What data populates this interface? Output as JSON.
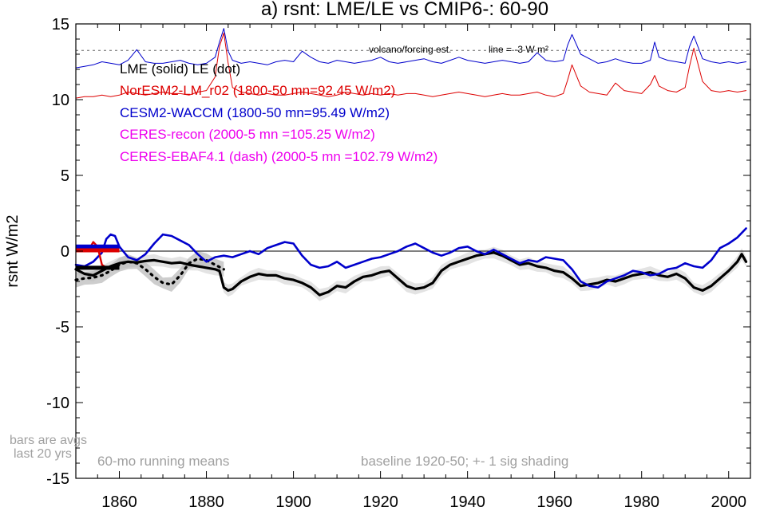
{
  "chart_data": {
    "type": "line",
    "title": "a) rsnt: LME/LE vs CMIP6-: 60-90",
    "ylabel": "rsnt W/m2",
    "xlabel": "",
    "xlim": [
      1850,
      2005
    ],
    "ylim": [
      -15,
      15
    ],
    "grid": false,
    "x_ticks": [
      1860,
      1880,
      1900,
      1920,
      1940,
      1960,
      1980,
      2000
    ],
    "y_ticks": [
      15,
      10,
      5,
      0,
      -5,
      -10,
      -15
    ],
    "zero_line": 0,
    "reference_line": {
      "value": 13.25,
      "label": "line = -3 W m²"
    },
    "legend": [
      {
        "text": "LME (solid)   LE (dot)",
        "color": "#000000"
      },
      {
        "text": "NorESM2-LM_r02 (1800-50 mn=92.45 W/m2)",
        "color": "#dd0000"
      },
      {
        "text": "CESM2-WACCM (1800-50 mn=95.49 W/m2)",
        "color": "#0000cc"
      },
      {
        "text": "CERES-recon (2000-5 mn =105.25 W/m2)",
        "color": "#ee00ee"
      },
      {
        "text": "CERES-EBAF4.1 (dash) (2000-5 mn =102.79 W/m2)",
        "color": "#ee00ee"
      }
    ],
    "annotations": {
      "volcano": "volcano/forcing est.",
      "bars_line1": "bars are avgs",
      "bars_line2": "last 20 yrs",
      "running": "60-mo running means",
      "baseline": "baseline 1920-50; +- 1 sig shading"
    },
    "colors": {
      "lme": "#000000",
      "noresm": "#dd0000",
      "cesm": "#0000cc",
      "shade": "#cccccc",
      "note": "#a0a0a0"
    },
    "series": [
      {
        "name": "LME (solid)",
        "color": "#000000",
        "x": [
          1850,
          1852,
          1854,
          1856,
          1858,
          1860,
          1862,
          1864,
          1866,
          1868,
          1870,
          1872,
          1874,
          1876,
          1878,
          1880,
          1882,
          1883,
          1884,
          1885,
          1886,
          1888,
          1890,
          1892,
          1894,
          1896,
          1898,
          1900,
          1902,
          1904,
          1906,
          1908,
          1910,
          1912,
          1914,
          1916,
          1918,
          1920,
          1922,
          1924,
          1926,
          1928,
          1930,
          1932,
          1934,
          1936,
          1938,
          1940,
          1942,
          1944,
          1946,
          1948,
          1950,
          1952,
          1954,
          1956,
          1958,
          1960,
          1962,
          1964,
          1966,
          1968,
          1970,
          1972,
          1974,
          1976,
          1978,
          1980,
          1982,
          1984,
          1986,
          1988,
          1990,
          1992,
          1994,
          1996,
          1998,
          2000,
          2002,
          2003,
          2004
        ],
        "values": [
          -1.2,
          -1.5,
          -1.6,
          -1.3,
          -1.0,
          -0.8,
          -0.7,
          -0.75,
          -0.65,
          -0.6,
          -0.7,
          -0.8,
          -0.75,
          -0.9,
          -1.0,
          -1.1,
          -1.2,
          -1.3,
          -2.4,
          -2.6,
          -2.5,
          -2.0,
          -1.7,
          -1.5,
          -1.6,
          -1.6,
          -1.8,
          -1.9,
          -2.1,
          -2.4,
          -2.9,
          -2.7,
          -2.3,
          -2.4,
          -2.0,
          -1.7,
          -1.6,
          -1.4,
          -1.3,
          -1.8,
          -2.3,
          -2.5,
          -2.4,
          -2.1,
          -1.3,
          -0.9,
          -0.7,
          -0.5,
          -0.3,
          -0.2,
          -0.1,
          -0.3,
          -0.6,
          -0.9,
          -0.8,
          -1.0,
          -1.1,
          -1.3,
          -1.4,
          -1.8,
          -2.3,
          -2.2,
          -2.1,
          -1.9,
          -2.0,
          -1.8,
          -1.6,
          -1.5,
          -1.4,
          -1.6,
          -1.7,
          -1.5,
          -1.8,
          -2.4,
          -2.6,
          -2.3,
          -1.8,
          -1.3,
          -0.7,
          -0.2,
          -0.7
        ]
      },
      {
        "name": "LE (dot)",
        "color": "#000000",
        "x": [
          1850,
          1852,
          1854,
          1856,
          1858,
          1860,
          1862,
          1864,
          1866,
          1868,
          1870,
          1872,
          1874,
          1876,
          1878,
          1880,
          1882,
          1884
        ],
        "values": [
          -1.9,
          -1.8,
          -1.75,
          -1.6,
          -1.3,
          -0.9,
          -0.7,
          -0.8,
          -1.2,
          -1.7,
          -2.1,
          -2.2,
          -1.6,
          -0.8,
          -0.5,
          -0.6,
          -0.9,
          -1.2
        ]
      },
      {
        "name": "CESM2-WACCM",
        "color": "#0000cc",
        "x": [
          1850,
          1852,
          1854,
          1856,
          1857,
          1858,
          1859,
          1860,
          1862,
          1864,
          1866,
          1868,
          1870,
          1872,
          1874,
          1876,
          1878,
          1880,
          1882,
          1884,
          1886,
          1888,
          1890,
          1892,
          1894,
          1896,
          1898,
          1900,
          1902,
          1904,
          1906,
          1908,
          1910,
          1912,
          1914,
          1916,
          1918,
          1920,
          1922,
          1924,
          1926,
          1928,
          1930,
          1932,
          1934,
          1936,
          1938,
          1940,
          1942,
          1944,
          1946,
          1948,
          1950,
          1952,
          1954,
          1956,
          1958,
          1960,
          1962,
          1964,
          1966,
          1968,
          1970,
          1972,
          1974,
          1976,
          1978,
          1980,
          1982,
          1984,
          1986,
          1988,
          1990,
          1992,
          1994,
          1996,
          1998,
          2000,
          2002,
          2004
        ],
        "values": [
          -0.9,
          -1.0,
          -0.7,
          -0.1,
          0.8,
          1.1,
          1.0,
          0.3,
          -0.4,
          -0.6,
          -0.2,
          0.5,
          1.1,
          1.0,
          0.7,
          0.4,
          -0.2,
          -0.7,
          -0.4,
          -0.3,
          -0.4,
          -0.2,
          0.0,
          -0.2,
          0.2,
          0.4,
          0.6,
          0.5,
          -0.3,
          -0.9,
          -1.1,
          -1.0,
          -0.7,
          -1.1,
          -0.9,
          -0.7,
          -0.5,
          -0.4,
          -0.2,
          0.0,
          0.3,
          0.5,
          0.2,
          -0.1,
          -0.3,
          -0.1,
          0.2,
          0.3,
          0.0,
          -0.2,
          0.1,
          -0.2,
          -0.5,
          -0.8,
          -0.6,
          -0.7,
          -0.4,
          -0.5,
          -0.6,
          -1.2,
          -2.0,
          -2.3,
          -2.4,
          -2.0,
          -1.8,
          -1.6,
          -1.3,
          -1.4,
          -1.6,
          -1.5,
          -1.2,
          -1.1,
          -0.8,
          -1.0,
          -1.1,
          -0.6,
          0.2,
          0.5,
          0.9,
          1.5
        ]
      },
      {
        "name": "NorESM2-LM_r02",
        "color": "#dd0000",
        "x": [
          1853,
          1854,
          1855,
          1856,
          1857,
          1858
        ],
        "values": [
          0.1,
          0.6,
          0.3,
          -0.9,
          -1.1,
          -1.1
        ]
      },
      {
        "name": "CESM2-WACCM (upper)",
        "color": "#0000cc",
        "x": [
          1850,
          1852,
          1854,
          1856,
          1858,
          1860,
          1862,
          1864,
          1866,
          1868,
          1870,
          1872,
          1874,
          1876,
          1878,
          1880,
          1882,
          1883,
          1884,
          1885,
          1886,
          1888,
          1890,
          1892,
          1894,
          1896,
          1898,
          1900,
          1902,
          1904,
          1906,
          1908,
          1910,
          1912,
          1914,
          1916,
          1918,
          1920,
          1922,
          1924,
          1926,
          1928,
          1930,
          1932,
          1934,
          1936,
          1938,
          1940,
          1942,
          1944,
          1946,
          1948,
          1950,
          1952,
          1954,
          1956,
          1958,
          1960,
          1962,
          1963,
          1964,
          1966,
          1968,
          1970,
          1972,
          1974,
          1976,
          1978,
          1980,
          1982,
          1983,
          1984,
          1986,
          1988,
          1990,
          1991,
          1992,
          1994,
          1996,
          1998,
          2000,
          2002,
          2004
        ],
        "values": [
          12.1,
          12.2,
          12.3,
          12.5,
          12.4,
          12.3,
          12.6,
          13.3,
          12.5,
          12.4,
          12.4,
          12.5,
          12.6,
          12.4,
          12.3,
          12.4,
          12.8,
          13.8,
          14.7,
          13.2,
          12.6,
          12.4,
          12.5,
          12.4,
          12.3,
          12.5,
          12.6,
          12.5,
          13.2,
          12.8,
          12.5,
          12.4,
          12.6,
          12.5,
          12.4,
          12.5,
          12.6,
          12.8,
          12.5,
          12.4,
          12.5,
          12.6,
          12.7,
          12.5,
          12.4,
          12.6,
          12.8,
          12.6,
          12.5,
          12.4,
          12.5,
          12.6,
          12.5,
          12.4,
          12.5,
          13.1,
          12.6,
          12.5,
          12.6,
          13.6,
          14.3,
          13.0,
          12.7,
          12.4,
          12.5,
          12.7,
          12.5,
          12.4,
          12.4,
          12.6,
          13.8,
          12.8,
          12.6,
          12.5,
          12.4,
          13.5,
          14.2,
          12.7,
          12.5,
          12.4,
          12.5,
          12.4,
          12.5
        ]
      },
      {
        "name": "NorESM2-LM_r02 (upper)",
        "color": "#dd0000",
        "x": [
          1850,
          1852,
          1854,
          1856,
          1858,
          1860,
          1862,
          1864,
          1866,
          1868,
          1870,
          1872,
          1874,
          1876,
          1878,
          1880,
          1882,
          1883,
          1884,
          1885,
          1886,
          1888,
          1890,
          1892,
          1894,
          1896,
          1898,
          1900,
          1902,
          1904,
          1906,
          1908,
          1910,
          1912,
          1914,
          1916,
          1918,
          1920,
          1922,
          1924,
          1926,
          1928,
          1930,
          1932,
          1934,
          1936,
          1938,
          1940,
          1942,
          1944,
          1946,
          1948,
          1950,
          1952,
          1954,
          1956,
          1958,
          1960,
          1962,
          1963,
          1964,
          1966,
          1968,
          1970,
          1972,
          1974,
          1976,
          1978,
          1980,
          1982,
          1983,
          1984,
          1986,
          1988,
          1990,
          1991,
          1992,
          1994,
          1996,
          1998,
          2000,
          2002,
          2004
        ],
        "values": [
          10.1,
          10.2,
          10.2,
          10.3,
          10.2,
          10.3,
          10.5,
          10.4,
          10.3,
          10.4,
          10.5,
          10.4,
          10.4,
          10.3,
          10.5,
          10.6,
          11.5,
          13.5,
          14.4,
          12.4,
          10.8,
          10.5,
          10.4,
          10.3,
          10.4,
          10.3,
          10.3,
          10.4,
          10.5,
          10.4,
          10.3,
          10.2,
          10.3,
          10.5,
          10.4,
          10.3,
          10.4,
          10.3,
          10.4,
          10.3,
          10.4,
          10.4,
          10.3,
          10.2,
          10.3,
          10.4,
          10.5,
          10.4,
          10.3,
          10.2,
          10.3,
          10.4,
          10.3,
          10.3,
          10.4,
          10.5,
          10.3,
          10.2,
          10.4,
          11.3,
          12.3,
          10.9,
          10.5,
          10.4,
          10.3,
          11.1,
          10.6,
          10.5,
          10.4,
          11.0,
          11.6,
          10.9,
          10.6,
          10.5,
          10.8,
          12.2,
          13.4,
          11.2,
          10.6,
          10.5,
          10.6,
          10.5,
          10.6
        ]
      }
    ],
    "bars": [
      {
        "name": "CESM2-WACCM",
        "color": "#0000cc",
        "x_range": [
          1850,
          1860
        ],
        "value": 0.3
      },
      {
        "name": "NorESM2-LM_r02",
        "color": "#dd0000",
        "x_range": [
          1850,
          1860
        ],
        "value": 0.05
      },
      {
        "name": "LME",
        "color": "#000000",
        "x_range": [
          1850,
          1860
        ],
        "value": -1.1
      }
    ]
  }
}
